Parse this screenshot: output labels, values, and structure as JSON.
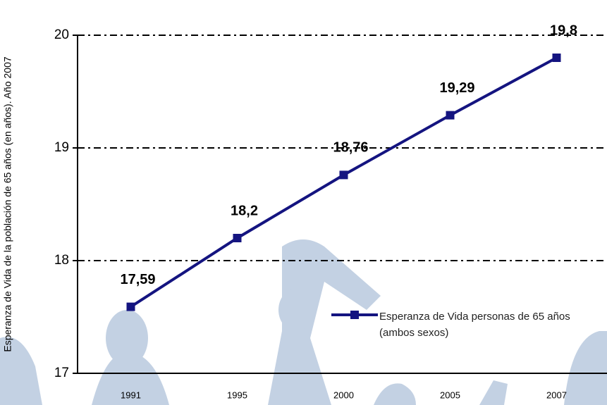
{
  "chart_data": {
    "type": "line",
    "y_axis_label": "Esperanza de Vida de la población de 65 años  (en años). Año 2007",
    "categories": [
      "1991",
      "1995",
      "2000",
      "2005",
      "2007"
    ],
    "series": [
      {
        "name": "Esperanza de Vida personas de 65 años (ambos sexos)",
        "color": "#141480",
        "values": [
          17.59,
          18.2,
          18.76,
          19.29,
          19.8
        ],
        "value_labels": [
          "17,59",
          "18,2",
          "18,76",
          "19,29",
          "19,8"
        ]
      }
    ],
    "ylim": [
      17,
      20
    ],
    "yticks": [
      17,
      18,
      19,
      20
    ],
    "grid": true,
    "legend": "lower right"
  }
}
